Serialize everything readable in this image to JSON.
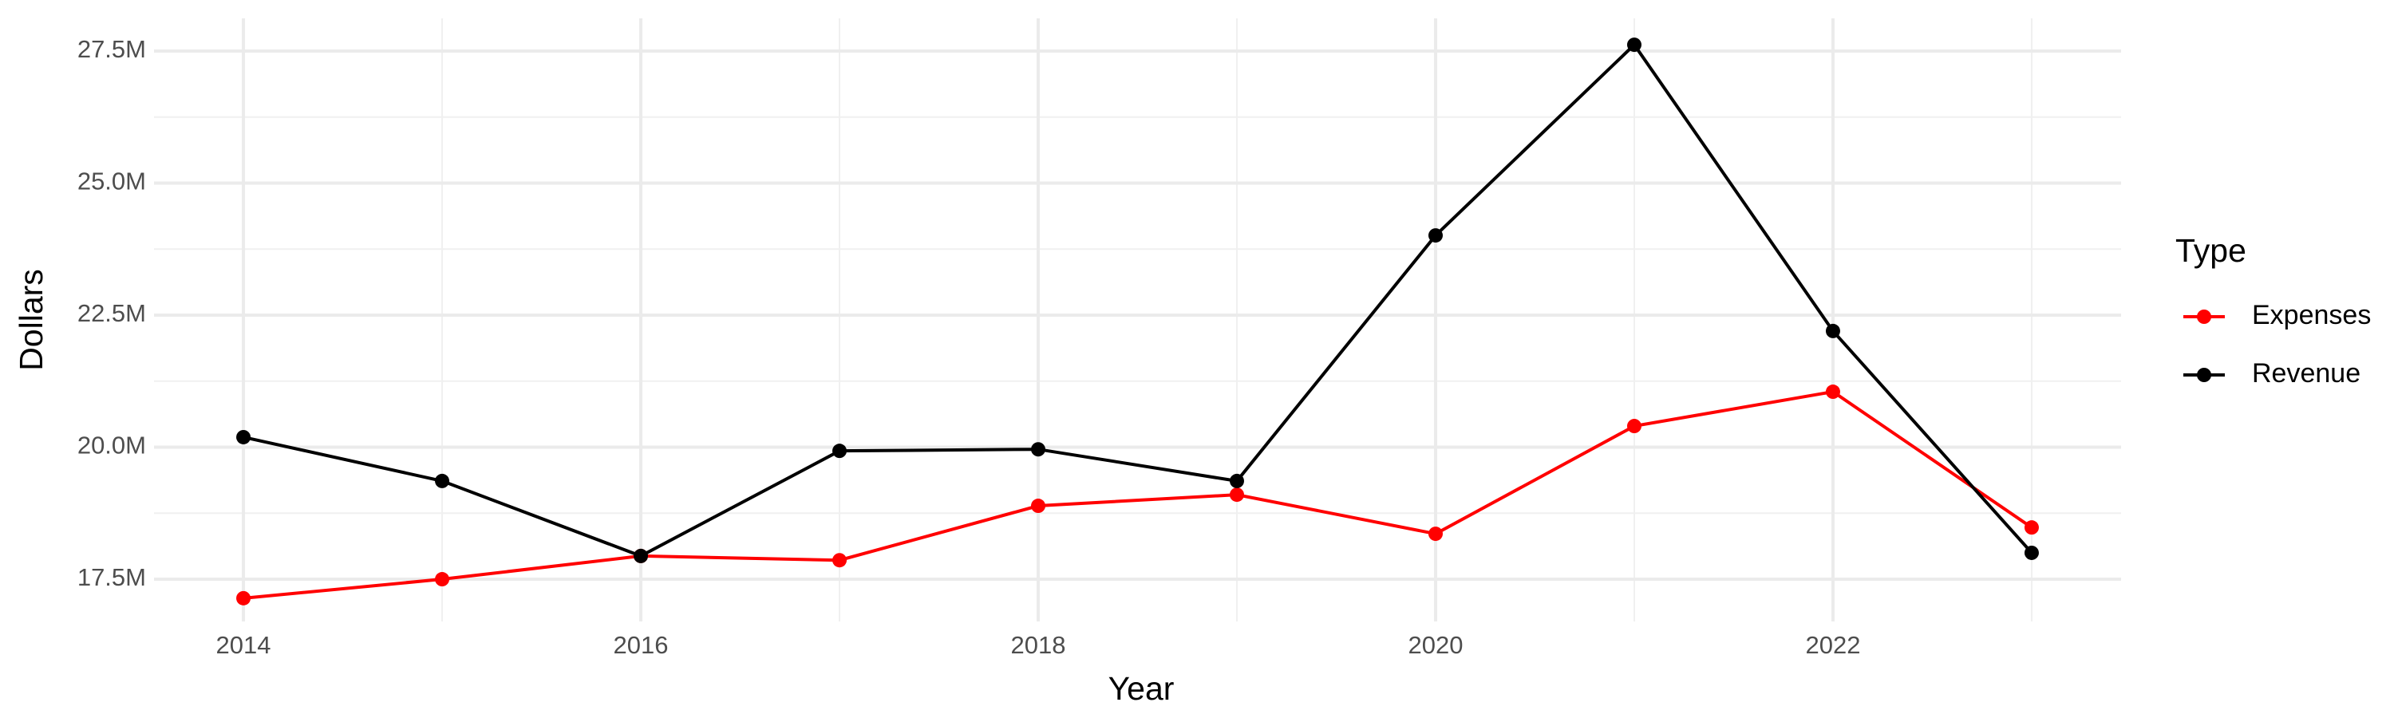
{
  "chart_data": {
    "type": "line",
    "x_label": "Year",
    "y_label": "Dollars",
    "legend_title": "Type",
    "legend_position": "right",
    "grid": true,
    "x": [
      2014,
      2015,
      2016,
      2017,
      2018,
      2019,
      2020,
      2021,
      2022,
      2023
    ],
    "series": [
      {
        "name": "Expenses",
        "color": "#ff0000",
        "values": [
          17140000,
          17500000,
          17940000,
          17860000,
          18890000,
          19100000,
          18360000,
          20400000,
          21050000,
          18480000
        ]
      },
      {
        "name": "Revenue",
        "color": "#000000",
        "values": [
          20190000,
          19360000,
          17940000,
          19930000,
          19960000,
          19360000,
          24010000,
          27620000,
          22200000,
          18000000
        ]
      }
    ],
    "xlim": [
      2013.55,
      2023.45
    ],
    "xticks": [
      2014,
      2016,
      2018,
      2020,
      2022
    ],
    "ylim": [
      16700000,
      28120000
    ],
    "yticks": [
      {
        "value": 17500000,
        "label": "17.5M"
      },
      {
        "value": 20000000,
        "label": "20.0M"
      },
      {
        "value": 22500000,
        "label": "22.5M"
      },
      {
        "value": 25000000,
        "label": "25.0M"
      },
      {
        "value": 27500000,
        "label": "27.5M"
      }
    ]
  }
}
